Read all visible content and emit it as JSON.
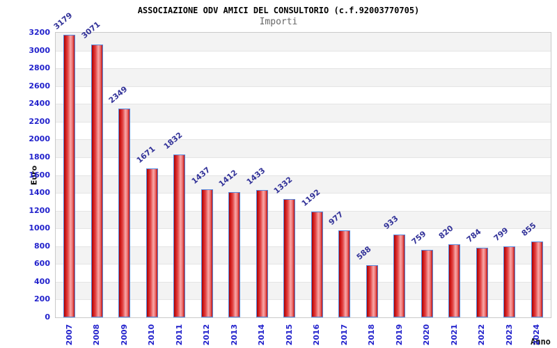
{
  "chart_data": {
    "type": "bar",
    "title": "ASSOCIAZIONE ODV AMICI DEL CONSULTORIO (c.f.92003770705)",
    "subtitle": "Importi",
    "xlabel": "Anno",
    "ylabel": "Euro",
    "categories": [
      "2007",
      "2008",
      "2009",
      "2010",
      "2011",
      "2012",
      "2013",
      "2014",
      "2015",
      "2016",
      "2017",
      "2018",
      "2019",
      "2020",
      "2021",
      "2022",
      "2023",
      "2024"
    ],
    "values": [
      3179,
      3071,
      2349,
      1671,
      1832,
      1437,
      1412,
      1433,
      1332,
      1192,
      977,
      588,
      933,
      759,
      820,
      784,
      799,
      855
    ],
    "ylim": [
      0,
      3200
    ],
    "yticks": [
      0,
      200,
      400,
      600,
      800,
      1000,
      1200,
      1400,
      1600,
      1800,
      2000,
      2200,
      2400,
      2600,
      2800,
      3000,
      3200
    ],
    "grid": true,
    "legend": "none",
    "colors": {
      "bar_fill_dark": "#a80000",
      "bar_fill_mid": "#e24444",
      "bar_fill_light": "#f7a8a8",
      "bar_border": "#5588dd",
      "tick_label": "#2222cc",
      "value_label": "#333399",
      "band": "#f3f3f3",
      "band_alt": "#ffffff",
      "grid_line": "#e4e4e4",
      "plot_border": "#c9c9c9",
      "title": "#000000",
      "subtitle": "#666666"
    }
  }
}
